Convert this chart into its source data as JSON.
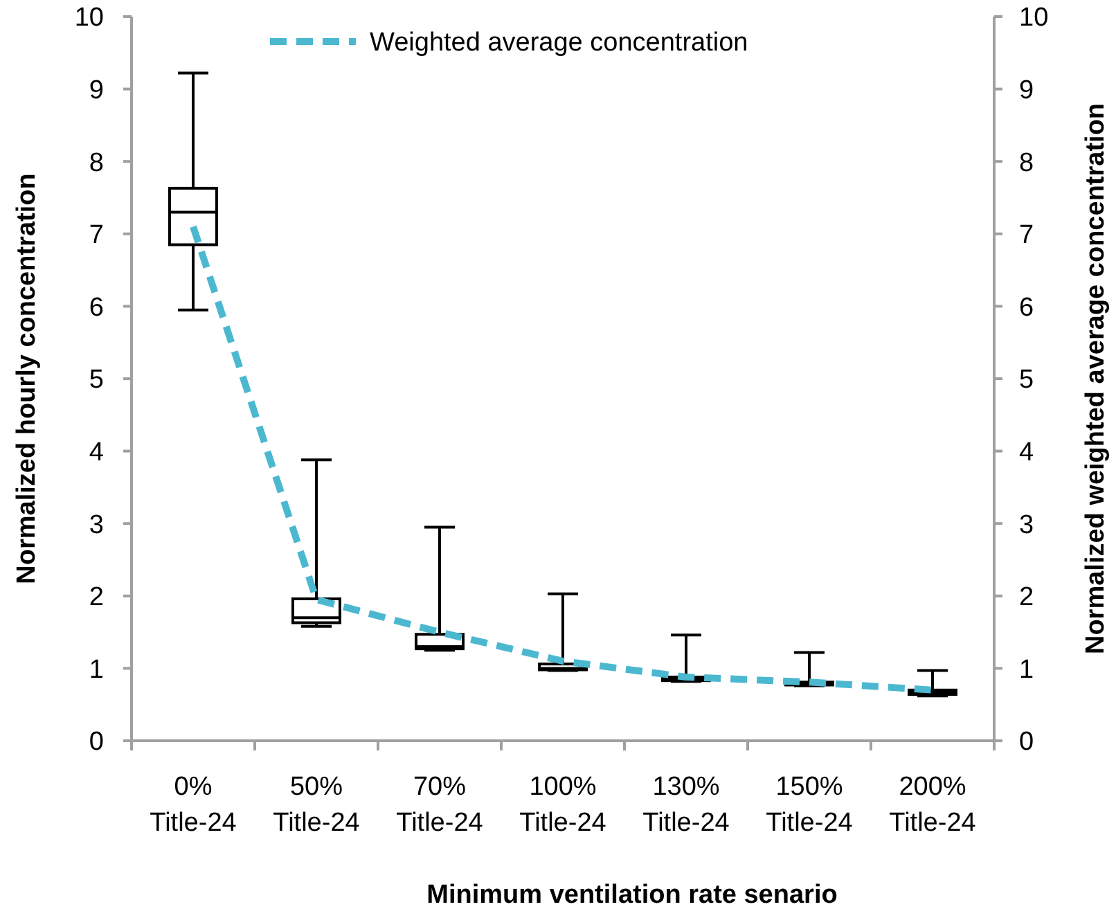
{
  "chart_data": {
    "type": "box",
    "xlabel": "Minimum ventilation rate senario",
    "ylabel": "Normalized hourly concentration",
    "y2label": "Normalized weighted average concentration",
    "categories": [
      "0%\nTitle-24",
      "50%\nTitle-24",
      "70%\nTitle-24",
      "100%\nTitle-24",
      "130%\nTitle-24",
      "150%\nTitle-24",
      "200%\nTitle-24"
    ],
    "boxes": [
      {
        "low": 5.95,
        "q1": 6.85,
        "median": 7.3,
        "q3": 7.63,
        "high": 9.22
      },
      {
        "low": 1.58,
        "q1": 1.63,
        "median": 1.7,
        "q3": 1.96,
        "high": 3.88
      },
      {
        "low": 1.25,
        "q1": 1.27,
        "median": 1.3,
        "q3": 1.47,
        "high": 2.95
      },
      {
        "low": 0.97,
        "q1": 0.98,
        "median": 1.0,
        "q3": 1.06,
        "high": 2.03
      },
      {
        "low": 0.82,
        "q1": 0.83,
        "median": 0.85,
        "q3": 0.88,
        "high": 1.46
      },
      {
        "low": 0.76,
        "q1": 0.77,
        "median": 0.79,
        "q3": 0.81,
        "high": 1.22
      },
      {
        "low": 0.62,
        "q1": 0.64,
        "median": 0.67,
        "q3": 0.7,
        "high": 0.97
      }
    ],
    "series": [
      {
        "type": "line",
        "name": "Weighted average concentration",
        "color": "#4bb8d0",
        "axis": "y2",
        "values": [
          7.1,
          1.95,
          1.5,
          1.1,
          0.88,
          0.81,
          0.7
        ]
      }
    ],
    "line_style": "dashed",
    "marker": "none",
    "grid": false,
    "legend": "top",
    "ylim": [
      0,
      10
    ],
    "yticks": [
      0,
      1,
      2,
      3,
      4,
      5,
      6,
      7,
      8,
      9,
      10
    ],
    "y2lim": [
      0,
      10
    ],
    "y2ticks": [
      0,
      1,
      2,
      3,
      4,
      5,
      6,
      7,
      8,
      9,
      10
    ]
  }
}
